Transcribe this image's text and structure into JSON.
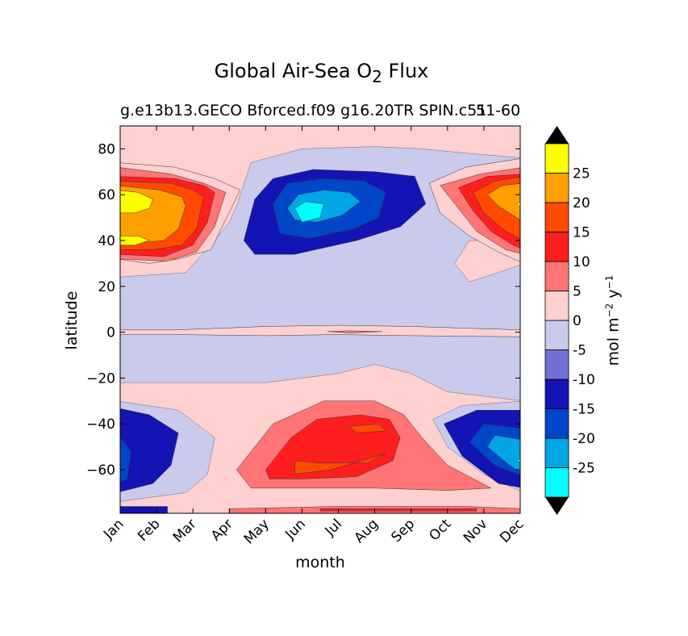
{
  "chart_data": {
    "type": "heatmap",
    "subtype": "filled-contour",
    "title": "Global Air-Sea O",
    "title_subscript": "2",
    "title_suffix": " Flux",
    "subtitle_left": "g.e13b13.GECO Bforced.f09 g16.20TR SPIN.c51",
    "subtitle_right": "51-60",
    "xlabel": "month",
    "ylabel": "latitude",
    "x_categories": [
      "Jan",
      "Feb",
      "Mar",
      "Apr",
      "May",
      "Jun",
      "Jul",
      "Aug",
      "Sep",
      "Oct",
      "Nov",
      "Dec"
    ],
    "yticks": [
      80,
      60,
      40,
      20,
      0,
      -20,
      -40,
      -60
    ],
    "ylim": [
      -79,
      90
    ],
    "colorbar": {
      "label": "mol m",
      "label_exp1": "−2",
      "label_mid": "  y",
      "label_exp2": "−1",
      "ticks": [
        25,
        20,
        15,
        10,
        5,
        0,
        -5,
        -10,
        -15,
        -20,
        -25
      ],
      "levels": [
        -30,
        -25,
        -20,
        -15,
        -10,
        -5,
        0,
        5,
        10,
        15,
        20,
        25,
        30
      ],
      "colors": [
        "#00ffff",
        "#00a6e6",
        "#0046c8",
        "#1414b4",
        "#7171d5",
        "#cacaed",
        "#ffd0d0",
        "#ff7575",
        "#ff1e1e",
        "#ff4a00",
        "#ff9f00",
        "#ffff00"
      ],
      "extend_colors": {
        "under": "#000000",
        "over": "#000000"
      }
    },
    "regions": [
      {
        "name": "nh-winter-spring-outgassing-jan",
        "max_level": 25,
        "lat_range": [
          32,
          74
        ],
        "months": [
          "Jan",
          "Feb",
          "Mar",
          "Apr"
        ]
      },
      {
        "name": "nh-winter-outgassing-dec",
        "max_level": 25,
        "lat_range": [
          30,
          72
        ],
        "months": [
          "Oct",
          "Nov",
          "Dec"
        ]
      },
      {
        "name": "nh-summer-uptake",
        "min_level": -25,
        "lat_range": [
          30,
          82
        ],
        "months": [
          "Apr",
          "May",
          "Jun",
          "Jul",
          "Aug",
          "Sep",
          "Oct"
        ]
      },
      {
        "name": "sh-winter-outgassing",
        "max_level": 20,
        "lat_range": [
          -70,
          -20
        ],
        "months": [
          "Apr",
          "May",
          "Jun",
          "Jul",
          "Aug",
          "Sep",
          "Oct",
          "Nov",
          "Dec"
        ]
      },
      {
        "name": "sh-summer-uptake-dec",
        "min_level": -25,
        "lat_range": [
          -68,
          -34
        ],
        "months": [
          "Sep",
          "Oct",
          "Nov",
          "Dec"
        ]
      },
      {
        "name": "sh-summer-uptake-jan",
        "min_level": -15,
        "lat_range": [
          -68,
          -32
        ],
        "months": [
          "Jan",
          "Feb",
          "Mar"
        ]
      },
      {
        "name": "equatorial-band",
        "max_level": 10,
        "lat_range": [
          -3,
          3
        ],
        "months": [
          "Jan",
          "Dec"
        ]
      }
    ]
  }
}
